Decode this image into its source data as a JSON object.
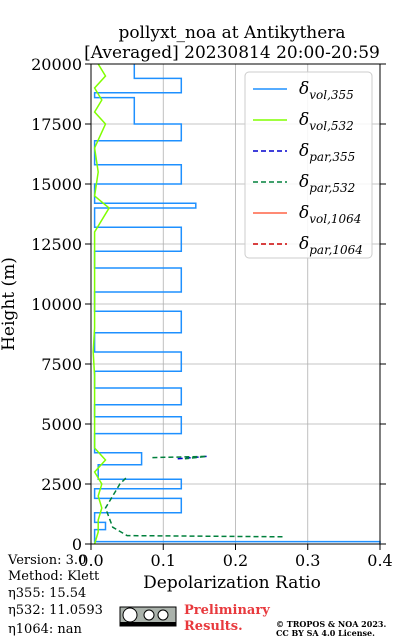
{
  "chart_data": {
    "type": "profile",
    "title": "pollyxt_noa at Antikythera",
    "subtitle": "[Averaged] 20230814 20:00-20:59",
    "xlabel": "Depolarization Ratio",
    "ylabel": "Height (m)",
    "xlim": [
      0,
      0.4
    ],
    "ylim": [
      0,
      20000
    ],
    "xticks": [
      {
        "value": 0,
        "label": "0.0"
      },
      0.1,
      0.2,
      0.3,
      0.4
    ],
    "yticks": [
      0,
      2500,
      5000,
      7500,
      10000,
      12500,
      15000,
      17500,
      20000
    ],
    "grid": true,
    "legend": "upper right",
    "series": [
      {
        "name": "δvol,355",
        "color": "#1e90ff",
        "dash": false,
        "x": [
          0.4,
          0.4,
          0.005,
          0.005,
          0.02,
          0.02,
          0.005,
          0.005,
          0.125,
          0.125,
          0.005,
          0.005,
          0.125,
          0.125,
          0.01,
          0.01,
          0.07,
          0.07,
          0.005,
          0.005,
          0.125,
          0.125,
          0.005,
          0.005,
          0.125,
          0.125,
          0.005,
          0.005,
          0.125,
          0.125,
          0.005,
          0.005,
          0.125,
          0.125,
          0.005,
          0.005,
          0.125,
          0.125,
          0.005,
          0.005,
          0.125,
          0.125,
          0.005,
          0.005,
          0.145,
          0.145,
          0.005,
          0.005,
          0.125,
          0.125,
          0.005,
          0.005,
          0.125,
          0.125,
          0.06,
          0.06,
          0.005,
          0.005,
          0.125,
          0.125,
          0.06,
          0.06
        ],
        "y": [
          0,
          100,
          100,
          600,
          600,
          900,
          900,
          1300,
          1300,
          1900,
          1900,
          2300,
          2300,
          2700,
          2700,
          3300,
          3300,
          3800,
          3800,
          4600,
          4600,
          5300,
          5300,
          5800,
          5800,
          6500,
          6500,
          7200,
          7200,
          8000,
          8000,
          8800,
          8800,
          9700,
          9700,
          10500,
          10500,
          11500,
          11500,
          12200,
          12200,
          13200,
          13200,
          14000,
          14000,
          14200,
          14200,
          15000,
          15000,
          15800,
          15800,
          16800,
          16800,
          17500,
          17500,
          18600,
          18600,
          18800,
          18800,
          19400,
          19400,
          20000
        ]
      },
      {
        "name": "δvol,532",
        "color": "#80ff00",
        "dash": false,
        "x": [
          0.005,
          0.01,
          0.01,
          0.015,
          0.01,
          0.015,
          0.005,
          0.02,
          0.005,
          0.005,
          0.005,
          0.005,
          0.003,
          0.005,
          0.005,
          0.005,
          0.005,
          0.005,
          0.025,
          0.005,
          0.01,
          0.005,
          0.02,
          0.005,
          0.015,
          0.005,
          0.02,
          0.01
        ],
        "y": [
          0,
          500,
          1000,
          1500,
          2000,
          2500,
          3000,
          3500,
          4000,
          5000,
          6000,
          7000,
          8000,
          9000,
          10000,
          11000,
          12000,
          13000,
          14000,
          14500,
          15500,
          16500,
          17500,
          18000,
          18500,
          19000,
          19500,
          20000
        ]
      },
      {
        "name": "δpar,355",
        "color": "#0000cd",
        "dash": true,
        "x": [
          0.12,
          0.16
        ],
        "y": [
          3550,
          3650
        ]
      },
      {
        "name": "δpar,532",
        "color": "#00803c",
        "dash": true,
        "x": [
          0.265,
          0.05,
          0.03,
          0.02,
          0.04,
          0.05,
          null,
          0.085,
          0.16,
          0.13
        ],
        "y": [
          300,
          350,
          700,
          1500,
          2500,
          2800,
          null,
          3600,
          3650,
          3550
        ]
      },
      {
        "name": "δvol,1064",
        "color": "#ff6347",
        "dash": false,
        "x": [],
        "y": []
      },
      {
        "name": "δpar,1064",
        "color": "#cc0000",
        "dash": true,
        "x": [],
        "y": []
      }
    ]
  },
  "notes": {
    "version": "Version: 3.0",
    "method": "Method: Klett",
    "eta355": "η355:  15.54",
    "eta532": "η532: 11.0593",
    "eta1064": "η1064:    nan",
    "preliminary": "Preliminary",
    "results": "Results.",
    "copyright": "© TROPOS & NOA 2023.",
    "license": "CC BY SA 4.0 License."
  }
}
